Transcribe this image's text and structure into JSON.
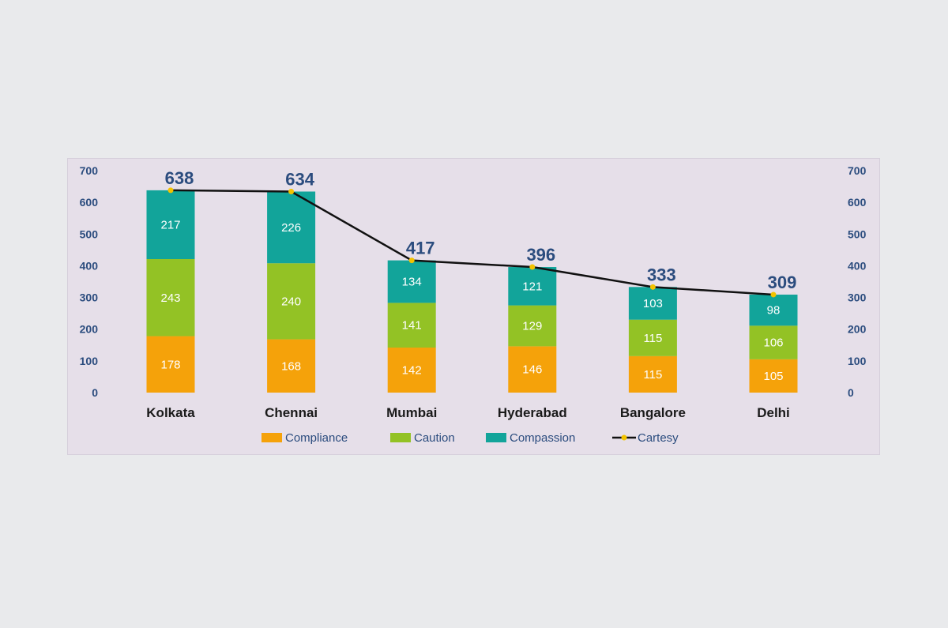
{
  "chart_data": {
    "type": "bar",
    "stacked": true,
    "categories": [
      "Kolkata",
      "Chennai",
      "Mumbai",
      "Hyderabad",
      "Bangalore",
      "Delhi"
    ],
    "series": [
      {
        "name": "Compliance",
        "color": "#f5a20a",
        "values": [
          178,
          168,
          142,
          146,
          115,
          105
        ]
      },
      {
        "name": "Caution",
        "color": "#93c225",
        "values": [
          243,
          240,
          141,
          129,
          115,
          106
        ]
      },
      {
        "name": "Compassion",
        "color": "#12a49a",
        "values": [
          217,
          226,
          134,
          121,
          103,
          98
        ]
      }
    ],
    "line_series": {
      "name": "Cartesy",
      "color": "#111111",
      "marker_color": "#f3c300",
      "values": [
        638,
        634,
        417,
        396,
        333,
        309
      ]
    },
    "y_ticks": [
      0,
      100,
      200,
      300,
      400,
      500,
      600,
      700
    ],
    "ylim": [
      0,
      700
    ],
    "secondary_axis": true,
    "legend_position": "bottom",
    "title": "",
    "xlabel": "",
    "ylabel": ""
  }
}
